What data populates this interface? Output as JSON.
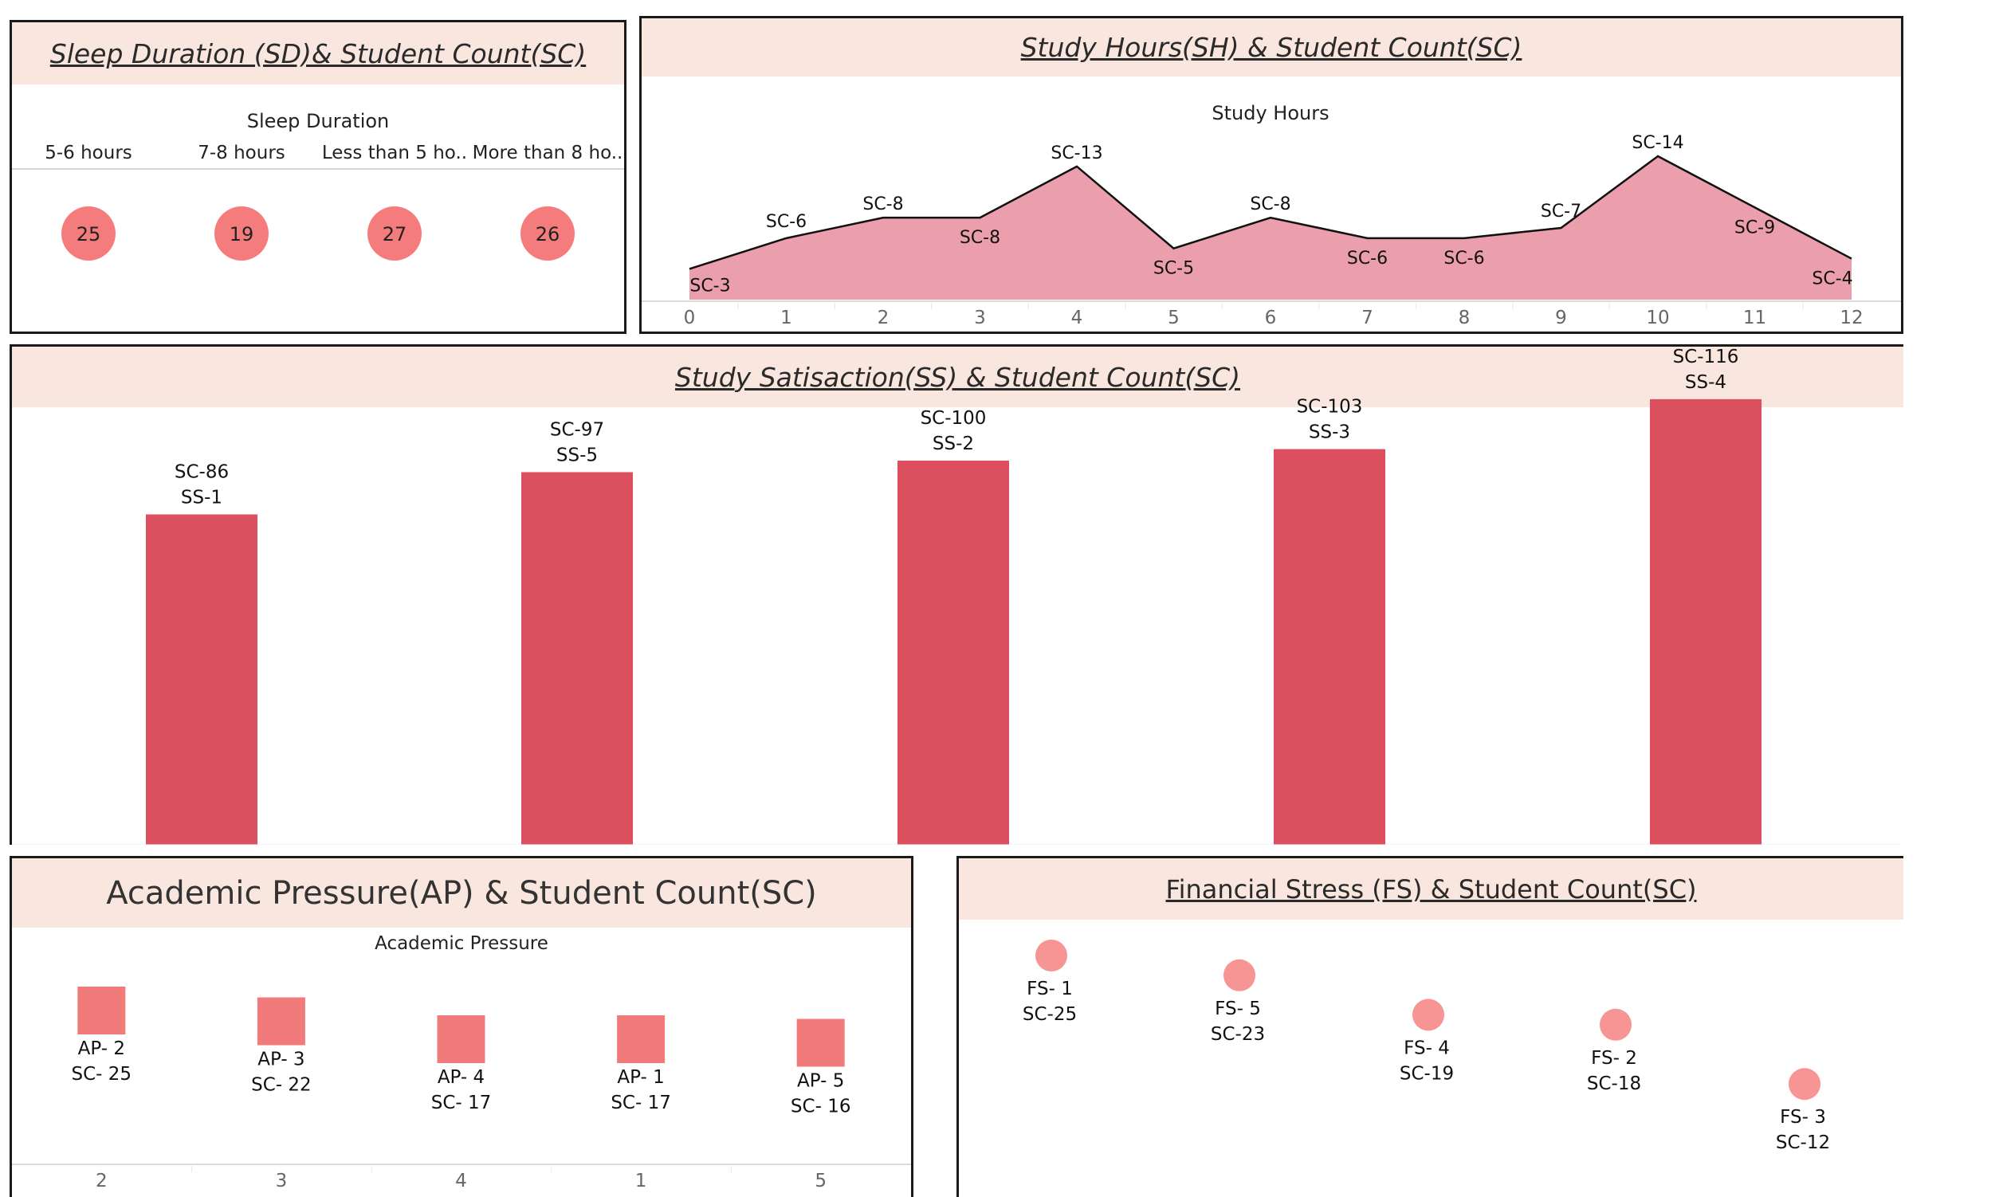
{
  "sleep": {
    "title": "Sleep Duration (SD)& Student Count(SC)",
    "header_label": "Sleep Duration",
    "color": "#f57c7c",
    "chart_data": {
      "type": "scatter",
      "title": "Sleep Duration (SD)& Student Count(SC)",
      "categories": [
        "5-6 hours",
        "7-8 hours",
        "Less than 5 ho..",
        "More than 8 ho.."
      ],
      "values": [
        25,
        19,
        27,
        26
      ]
    }
  },
  "study_hours": {
    "title": "Study Hours(SH) & Student Count(SC)",
    "header_label": "Study Hours",
    "fill_color": "#eb9eab",
    "chart_data": {
      "type": "area",
      "title": "Study Hours(SH) & Student Count(SC)",
      "x": [
        0,
        1,
        2,
        3,
        4,
        5,
        6,
        7,
        8,
        9,
        10,
        11,
        12
      ],
      "values": [
        3,
        6,
        8,
        8,
        13,
        5,
        8,
        6,
        6,
        7,
        14,
        9,
        4
      ],
      "labels": [
        "SC-3",
        "SC-6",
        "SC-8",
        "SC-8",
        "SC-13",
        "SC-5",
        "SC-8",
        "SC-6",
        "SC-6",
        "SC-7",
        "SC-14",
        "SC-9",
        "SC-4"
      ]
    }
  },
  "satisfaction": {
    "title": "Study Satisaction(SS) & Student Count(SC)",
    "bar_color": "#dc4f5e",
    "chart_data": {
      "type": "bar",
      "title": "Study Satisaction(SS) & Student Count(SC)",
      "categories": [
        "SS-1",
        "SS-5",
        "SS-2",
        "SS-3",
        "SS-4"
      ],
      "values": [
        86,
        97,
        100,
        103,
        116
      ],
      "top_labels": [
        "SC-86",
        "SC-97",
        "SC-100",
        "SC-103",
        "SC-116"
      ]
    }
  },
  "academic": {
    "title": "Academic Pressure(AP) & Student Count(SC)",
    "header_label": "Academic Pressure",
    "color": "#f17b7a",
    "chart_data": {
      "type": "scatter",
      "title": "Academic Pressure(AP) & Student Count(SC)",
      "categories": [
        "2",
        "3",
        "4",
        "1",
        "5"
      ],
      "values": [
        25,
        22,
        17,
        17,
        16
      ],
      "labels_ap": [
        "AP- 2",
        "AP- 3",
        "AP- 4",
        "AP- 1",
        "AP- 5"
      ],
      "labels_sc": [
        "SC- 25",
        "SC- 22",
        "SC- 17",
        "SC- 17",
        "SC- 16"
      ]
    }
  },
  "financial": {
    "title": "Financial Stress (FS) & Student Count(SC)",
    "color": "#f79494",
    "chart_data": {
      "type": "scatter",
      "title": "Financial Stress (FS) & Student Count(SC)",
      "categories": [
        "FS- 1",
        "FS- 5",
        "FS- 4",
        "FS- 2",
        "FS- 3"
      ],
      "values": [
        25,
        23,
        19,
        18,
        12
      ],
      "labels_sc": [
        "SC-25",
        "SC-23",
        "SC-19",
        "SC-18",
        "SC-12"
      ]
    }
  }
}
